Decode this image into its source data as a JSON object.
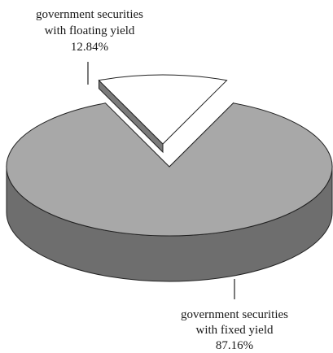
{
  "chart_data": {
    "type": "pie",
    "style": "3d-exploded",
    "slices": [
      {
        "label_line1": "government securities",
        "label_line2": "with fixed yield",
        "value": 87.16,
        "value_label": "87.16%",
        "top_color": "#a8a8a8",
        "side_color": "#6e6e6e"
      },
      {
        "label_line1": "government securities",
        "label_line2": "with floating yield",
        "value": 12.84,
        "value_label": "12.84%",
        "top_color": "#ffffff",
        "side_color": "#7a7a7a"
      }
    ]
  }
}
